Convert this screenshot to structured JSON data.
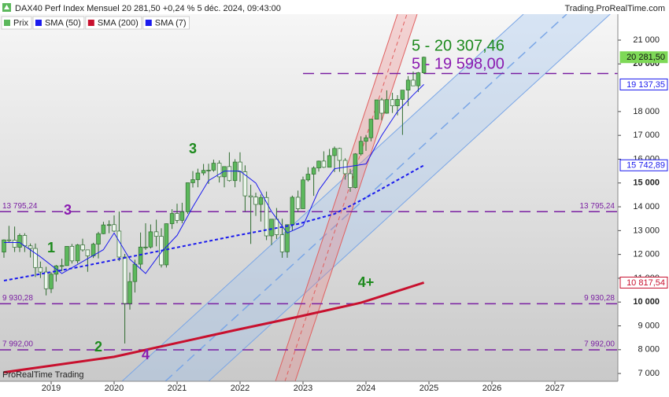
{
  "chart_data": {
    "type": "candlestick",
    "title": "DAX40 Perf Index Mensuel 20 281,50 +0,24 % 5 déc. 2024, 09:43:00",
    "source": "Trading.ProRealTime.com",
    "footer": "ProRealTime Trading",
    "candles": {
      "name": "Prix",
      "color": "#5cb85c",
      "x": [
        2018.25,
        2018.33,
        2018.42,
        2018.5,
        2018.58,
        2018.67,
        2018.75,
        2018.83,
        2018.92,
        2019.0,
        2019.08,
        2019.17,
        2019.25,
        2019.33,
        2019.42,
        2019.5,
        2019.58,
        2019.67,
        2019.75,
        2019.83,
        2019.92,
        2020.0,
        2020.08,
        2020.17,
        2020.25,
        2020.33,
        2020.42,
        2020.5,
        2020.58,
        2020.67,
        2020.75,
        2020.83,
        2020.92,
        2021.0,
        2021.08,
        2021.17,
        2021.25,
        2021.33,
        2021.42,
        2021.5,
        2021.58,
        2021.67,
        2021.75,
        2021.83,
        2021.92,
        2022.0,
        2022.08,
        2022.17,
        2022.25,
        2022.33,
        2022.42,
        2022.5,
        2022.58,
        2022.67,
        2022.75,
        2022.83,
        2022.92,
        2023.0,
        2023.08,
        2023.17,
        2023.25,
        2023.33,
        2023.42,
        2023.5,
        2023.58,
        2023.67,
        2023.75,
        2023.83,
        2023.92,
        2024.0,
        2024.08,
        2024.17,
        2024.25,
        2024.33,
        2024.42,
        2024.5,
        2024.58,
        2024.67,
        2024.75,
        2024.83,
        2024.92
      ],
      "open": [
        12100,
        12610,
        12600,
        12300,
        12800,
        12360,
        12250,
        11450,
        11260,
        10560,
        11170,
        11520,
        11530,
        12340,
        11730,
        12400,
        12190,
        11940,
        12430,
        12870,
        13240,
        13250,
        12980,
        11890,
        9940,
        10860,
        11590,
        12310,
        12310,
        12950,
        12760,
        11560,
        13290,
        13720,
        13430,
        13790,
        15010,
        15140,
        15420,
        15530,
        15540,
        15830,
        15260,
        15690,
        15100,
        15880,
        15470,
        14460,
        14410,
        14100,
        14390,
        12780,
        13480,
        12830,
        12110,
        13250,
        14400,
        13920,
        15130,
        15370,
        15630,
        15920,
        15660,
        16150,
        16450,
        15950,
        15390,
        14810,
        16220,
        16750,
        16900,
        17680,
        18490,
        17930,
        18500,
        18240,
        18510,
        18900,
        19320,
        19080,
        19630
      ],
      "high": [
        12630,
        13200,
        13170,
        12880,
        12890,
        12460,
        12460,
        11700,
        11480,
        11250,
        11560,
        11820,
        12350,
        12440,
        12440,
        12660,
        12200,
        12490,
        12950,
        13370,
        13430,
        13640,
        13800,
        12020,
        11240,
        11780,
        12920,
        13310,
        13260,
        13460,
        13100,
        13300,
        13900,
        14130,
        14170,
        15010,
        15500,
        15600,
        15800,
        15810,
        15980,
        15950,
        15690,
        16290,
        16000,
        16290,
        15740,
        14930,
        14590,
        14520,
        14640,
        13360,
        13950,
        13500,
        13260,
        14470,
        14680,
        15270,
        15660,
        15700,
        15940,
        16330,
        16430,
        16530,
        16480,
        16040,
        15590,
        16250,
        16960,
        17020,
        17600,
        18490,
        18570,
        18890,
        18790,
        18690,
        18870,
        19490,
        19680,
        19660,
        20307
      ],
      "low": [
        11860,
        12520,
        12100,
        12100,
        12100,
        11870,
        11050,
        11010,
        10280,
        10380,
        10860,
        11300,
        11520,
        11620,
        11620,
        12120,
        11270,
        11850,
        11830,
        12850,
        12890,
        12940,
        11720,
        8260,
        9680,
        10400,
        11380,
        12190,
        12250,
        12340,
        11450,
        11450,
        13070,
        13310,
        13310,
        13700,
        14810,
        14820,
        15320,
        14960,
        15470,
        15020,
        14820,
        15060,
        14820,
        15050,
        13800,
        12440,
        13620,
        13380,
        12600,
        12390,
        12650,
        11860,
        11860,
        13000,
        13790,
        13980,
        15060,
        14460,
        15480,
        15630,
        15730,
        15460,
        15470,
        15140,
        14630,
        14770,
        16150,
        16350,
        16750,
        17680,
        17630,
        17910,
        17940,
        17840,
        17020,
        18230,
        19080,
        18820,
        19580
      ],
      "close": [
        12610,
        12600,
        12300,
        12800,
        12360,
        12250,
        11450,
        11260,
        10560,
        11170,
        11520,
        11530,
        12340,
        11730,
        12400,
        12190,
        11940,
        12430,
        12870,
        13240,
        13250,
        12980,
        11890,
        9940,
        10860,
        11590,
        12310,
        12310,
        12950,
        12760,
        11560,
        13290,
        13720,
        13430,
        13790,
        15010,
        15140,
        15420,
        15530,
        15540,
        15830,
        15260,
        15690,
        15100,
        15880,
        15470,
        14460,
        14410,
        14100,
        14390,
        12780,
        13480,
        12830,
        12110,
        13250,
        14400,
        13920,
        15130,
        15370,
        15630,
        15920,
        15660,
        16150,
        16450,
        15950,
        15390,
        14810,
        16220,
        16750,
        16900,
        17680,
        18490,
        17930,
        18500,
        18240,
        18510,
        18900,
        19320,
        19080,
        19630,
        20281.5
      ]
    },
    "series": [
      {
        "name": "SMA (50)",
        "color": "#1a1aee",
        "style": "dotted",
        "x": [
          2018.25,
          2019.42,
          2020.67,
          2021.92,
          2022.92,
          2023.5,
          2023.92,
          2024.92
        ],
        "values": [
          10900,
          11460,
          12120,
          12780,
          13280,
          13700,
          14270,
          15742.89
        ]
      },
      {
        "name": "SMA (200)",
        "color": "#c8102e",
        "style": "solid",
        "x": [
          2018.25,
          2020.0,
          2021.92,
          2022.92,
          2023.92,
          2024.92
        ],
        "values": [
          7050,
          7700,
          8820,
          9380,
          9970,
          10817.54
        ]
      },
      {
        "name": "SMA (7)",
        "color": "#1a1aee",
        "style": "thin",
        "x": [
          2018.25,
          2018.5,
          2018.83,
          2019.17,
          2019.5,
          2019.83,
          2020.0,
          2020.25,
          2020.5,
          2020.75,
          2021.0,
          2021.25,
          2021.5,
          2021.75,
          2022.0,
          2022.25,
          2022.5,
          2022.75,
          2023.0,
          2023.25,
          2023.5,
          2023.75,
          2024.0,
          2024.25,
          2024.5,
          2024.75,
          2024.92
        ],
        "values": [
          12500,
          12500,
          11900,
          11200,
          11700,
          12200,
          12900,
          11800,
          11200,
          12100,
          12800,
          14000,
          15100,
          15500,
          15500,
          15000,
          13800,
          12900,
          13200,
          14700,
          15600,
          15700,
          15800,
          17000,
          18000,
          18700,
          19137.35
        ]
      }
    ],
    "levels": [
      {
        "value": 7992,
        "label": "7 992,00"
      },
      {
        "value": 9930.28,
        "label": "9 930,28"
      },
      {
        "value": 13795.24,
        "label": "13 795,24"
      },
      {
        "value": 19598,
        "start": 2023.0
      }
    ],
    "price_labels": [
      {
        "value": 20281.5,
        "label": "20 281,50",
        "color": "#7ed957"
      },
      {
        "value": 19137.35,
        "label": "19 137,35",
        "color": "#1a1aee"
      },
      {
        "value": 15742.89,
        "label": "15 742,89",
        "color": "#1a1aee"
      },
      {
        "value": 10817.54,
        "label": "10 817,54",
        "color": "#c8102e"
      }
    ],
    "annotations": [
      {
        "text": "1",
        "color": "#1d8a1d"
      },
      {
        "text": "2",
        "color": "#1d8a1d"
      },
      {
        "text": "3",
        "color": "#1d8a1d"
      },
      {
        "text": "3",
        "color": "#8a1ab0"
      },
      {
        "text": "4",
        "color": "#8a1ab0"
      },
      {
        "text": "4+",
        "color": "#1d8a1d"
      },
      {
        "text": "5 - 20 307,46",
        "color": "#1d8a1d"
      },
      {
        "text": "5 - 19 598,00",
        "color": "#8a1ab0"
      }
    ],
    "level_color": "#7a1fa2",
    "xlim": [
      2018.1875,
      2028
    ],
    "xticks": [
      2019,
      2020,
      2021,
      2022,
      2023,
      2024,
      2025,
      2026,
      2027
    ],
    "ylim": [
      6673,
      22090
    ],
    "yticks": [
      {
        "value": 7000,
        "label": "7 000"
      },
      {
        "value": 8000,
        "label": "8 000"
      },
      {
        "value": 9000,
        "label": "9 000"
      },
      {
        "value": 10000,
        "label": "10 000"
      },
      {
        "value": 11000,
        "label": "11 000"
      },
      {
        "value": 12000,
        "label": "12 000"
      },
      {
        "value": 13000,
        "label": "13 000"
      },
      {
        "value": 14000,
        "label": "14 000"
      },
      {
        "value": 15000,
        "label": "15 000"
      },
      {
        "value": 16000,
        "label": "16 000"
      },
      {
        "value": 17000,
        "label": "17 000"
      },
      {
        "value": 18000,
        "label": "18 000"
      },
      {
        "value": 20000,
        "label": "20 000"
      },
      {
        "value": 21000,
        "label": "21 000"
      }
    ]
  }
}
